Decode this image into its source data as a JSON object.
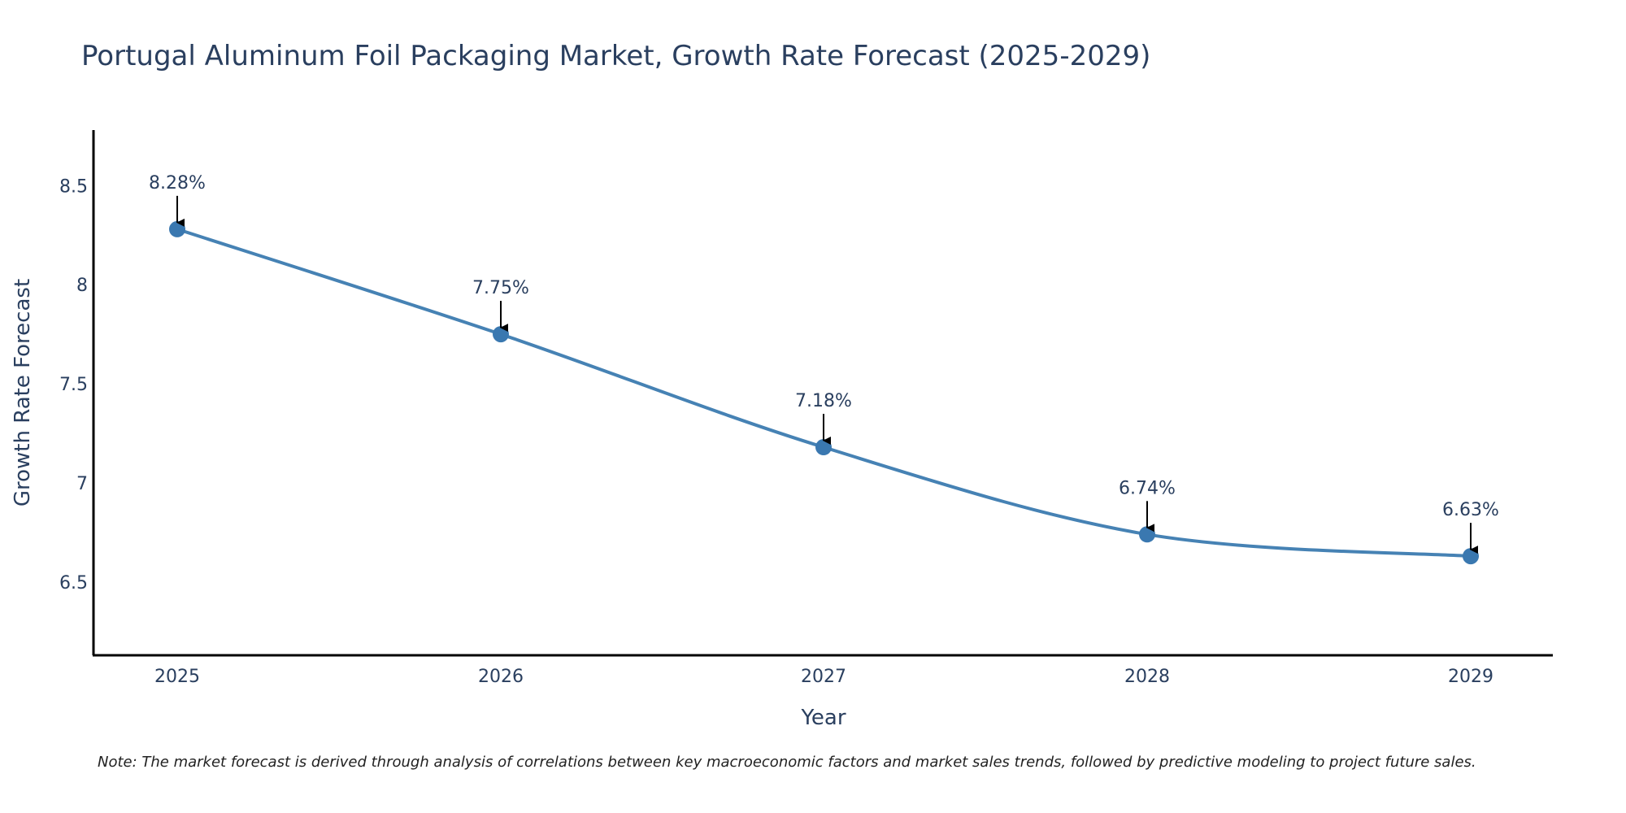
{
  "chart_data": {
    "type": "line",
    "title": "Portugal Aluminum Foil Packaging Market, Growth Rate Forecast (2025-2029)",
    "xlabel": "Year",
    "ylabel": "Growth Rate Forecast",
    "categories": [
      "2025",
      "2026",
      "2027",
      "2028",
      "2029"
    ],
    "series": [
      {
        "name": "Growth Rate Forecast",
        "values": [
          8.28,
          7.75,
          7.18,
          6.74,
          6.63
        ]
      }
    ],
    "data_labels": [
      "8.28%",
      "7.75%",
      "7.18%",
      "6.74%",
      "6.63%"
    ],
    "yticks": [
      6.5,
      7,
      7.5,
      8,
      8.5
    ],
    "ytick_labels": [
      "6.5",
      "7",
      "7.5",
      "8",
      "8.5"
    ],
    "ylim": [
      6.13,
      8.78
    ],
    "grid": false,
    "colors": {
      "line": "#4682b4",
      "marker": "#3a78b0",
      "arrow": "#000000",
      "axis": "#000000",
      "text": "#2a3f5f"
    },
    "note": "Note: The market forecast is derived through analysis of correlations between key macroeconomic factors and market sales trends, followed by predictive modeling to project future sales."
  }
}
